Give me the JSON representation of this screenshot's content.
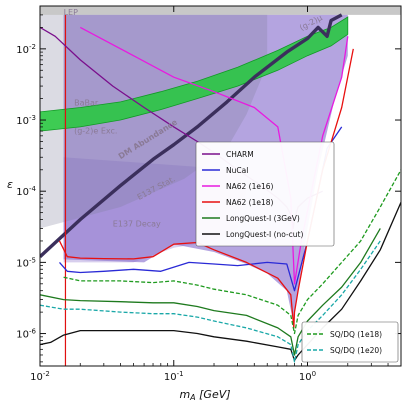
{
  "chart_data": {
    "type": "line",
    "xlabel": "m_A [GeV]",
    "ylabel": "ε",
    "x_scale": "log",
    "y_scale": "log",
    "xlim": [
      0.01,
      5
    ],
    "ylim": [
      3.5e-07,
      0.04
    ],
    "x_ticks": [
      {
        "value": 0.01,
        "label": "10^-2"
      },
      {
        "value": 0.1,
        "label": "10^-1"
      },
      {
        "value": 1,
        "label": "10^0"
      }
    ],
    "y_ticks": [
      {
        "value": 1e-06,
        "label": "10^-6"
      },
      {
        "value": 1e-05,
        "label": "10^-5"
      },
      {
        "value": 0.0001,
        "label": "10^-4"
      },
      {
        "value": 0.001,
        "label": "10^-3"
      },
      {
        "value": 0.01,
        "label": "10^-2"
      }
    ],
    "regions": [
      {
        "label": "LEP",
        "color": "#c8c8c8"
      },
      {
        "label": "BaBar",
        "color": "#a79bc0"
      },
      {
        "label": "(g-2)e Exc.",
        "color": "#9a8fb3"
      },
      {
        "label": "E137 Stat.",
        "color": "#9a8fb3"
      },
      {
        "label": "E137 Decay",
        "color": "#9a8fb3"
      },
      {
        "label": "(g-2)μ",
        "color": "#22c93a"
      },
      {
        "label": "DM Abundance",
        "color": "#3b2f5c"
      }
    ],
    "legend_main": [
      {
        "name": "CHARM",
        "color": "#7a0f8c",
        "style": "solid"
      },
      {
        "name": "NuCal",
        "color": "#2a2ad6",
        "style": "solid"
      },
      {
        "name": "NA62 (1e16)",
        "color": "#e81ae0",
        "style": "solid"
      },
      {
        "name": "NA62 (1e18)",
        "color": "#e81010",
        "style": "solid"
      },
      {
        "name": "LongQuest-I (3GeV)",
        "color": "#1e7a1e",
        "style": "solid"
      },
      {
        "name": "LongQuest-I (no-cut)",
        "color": "#111111",
        "style": "solid"
      }
    ],
    "legend_secondary": [
      {
        "name": "SQ/DQ (1e18)",
        "color": "#1e9a1e",
        "style": "dashed"
      },
      {
        "name": "SQ/DQ (1e20)",
        "color": "#1aa8a8",
        "style": "dashed"
      }
    ],
    "series": [
      {
        "name": "CHARM",
        "x": [
          0.01,
          0.013,
          0.02,
          0.035,
          0.06,
          0.1,
          0.15,
          0.2,
          0.3,
          0.45,
          0.6,
          0.7,
          0.76,
          0.78,
          0.8,
          0.85,
          1.0,
          1.3
        ],
        "y": [
          0.02,
          0.015,
          0.007,
          0.003,
          0.0015,
          0.0008,
          0.0005,
          0.00035,
          0.0002,
          0.00012,
          8e-05,
          6e-05,
          4.5e-05,
          3e-05,
          4e-05,
          6e-05,
          8e-05,
          0.0001
        ]
      },
      {
        "name": "NuCal",
        "x": [
          0.014,
          0.016,
          0.02,
          0.03,
          0.05,
          0.08,
          0.13,
          0.2,
          0.3,
          0.5,
          0.7,
          0.8,
          1.0,
          1.4,
          1.8
        ],
        "y": [
          1e-05,
          7.5e-06,
          7.2e-06,
          7.5e-06,
          8e-06,
          7.5e-06,
          1e-05,
          9.5e-06,
          9e-06,
          1e-05,
          9.5e-06,
          4e-06,
          2e-05,
          0.0004,
          0.0008
        ]
      },
      {
        "name": "NA62 (1e16)",
        "x": [
          0.02,
          0.05,
          0.1,
          0.2,
          0.4,
          0.6,
          0.75,
          0.8,
          0.9,
          1.3,
          1.8,
          2.0
        ],
        "y": [
          0.02,
          0.008,
          0.004,
          0.0025,
          0.0015,
          0.0008,
          8e-05,
          5e-06,
          2e-05,
          0.0006,
          0.004,
          0.015
        ]
      },
      {
        "name": "NA62 (1e18)",
        "x": [
          0.014,
          0.016,
          0.02,
          0.03,
          0.05,
          0.07,
          0.1,
          0.15,
          0.2,
          0.35,
          0.6,
          0.75,
          0.79,
          0.8,
          0.85,
          1.0,
          1.3,
          1.8,
          2.2
        ],
        "y": [
          2e-05,
          1.2e-05,
          1.15e-05,
          1.13e-05,
          1.12e-05,
          1.2e-05,
          1.8e-05,
          1.9e-05,
          1.5e-05,
          1e-05,
          6e-06,
          3.5e-06,
          1.2e-06,
          2e-06,
          4e-06,
          2e-05,
          0.0002,
          0.0015,
          0.01
        ]
      },
      {
        "name": "LongQuest-I (3GeV)",
        "x": [
          0.01,
          0.015,
          0.02,
          0.04,
          0.07,
          0.1,
          0.15,
          0.2,
          0.35,
          0.6,
          0.75,
          0.8,
          0.85,
          1.0,
          1.3,
          1.8,
          2.5,
          3.5
        ],
        "y": [
          3.5e-06,
          3e-06,
          2.9e-06,
          2.8e-06,
          2.7e-06,
          2.7e-06,
          2.4e-06,
          2.1e-06,
          1.8e-06,
          1.2e-06,
          9e-07,
          5e-07,
          9e-07,
          1.5e-06,
          2.5e-06,
          4.5e-06,
          1e-05,
          3e-05
        ]
      },
      {
        "name": "LongQuest-I (no-cut)",
        "x": [
          0.01,
          0.012,
          0.015,
          0.02,
          0.04,
          0.07,
          0.1,
          0.15,
          0.2,
          0.35,
          0.6,
          0.75,
          0.8,
          0.85,
          1.0,
          1.3,
          1.8,
          2.5,
          3.5,
          5
        ],
        "y": [
          7e-07,
          7.5e-07,
          9.5e-07,
          1.1e-06,
          1.1e-06,
          1.1e-06,
          1.1e-06,
          1e-06,
          9e-07,
          7.8e-07,
          6.5e-07,
          6e-07,
          4.2e-07,
          5e-07,
          7e-07,
          1.2e-06,
          2.2e-06,
          5.5e-06,
          1.5e-05,
          7e-05
        ]
      },
      {
        "name": "SQ/DQ (1e18)",
        "x": [
          0.015,
          0.02,
          0.04,
          0.07,
          0.1,
          0.15,
          0.2,
          0.35,
          0.6,
          0.75,
          0.8,
          0.85,
          1.0,
          1.3,
          1.8,
          2.5,
          3.5,
          5
        ],
        "y": [
          6.2e-06,
          5.5e-06,
          5.5e-06,
          5.2e-06,
          5.5e-06,
          4.8e-06,
          4.2e-06,
          3.5e-06,
          2.5e-06,
          1.8e-06,
          1e-06,
          1.8e-06,
          3e-06,
          5e-06,
          1e-05,
          2e-05,
          6e-05,
          0.0002
        ]
      },
      {
        "name": "SQ/DQ (1e20)",
        "x": [
          0.01,
          0.015,
          0.02,
          0.04,
          0.07,
          0.1,
          0.15,
          0.2,
          0.35,
          0.6,
          0.75,
          0.8,
          0.85,
          1.0,
          1.3,
          1.8,
          2.5,
          3.5
        ],
        "y": [
          2.5e-06,
          2.2e-06,
          2.2e-06,
          2e-06,
          1.9e-06,
          1.9e-06,
          1.7e-06,
          1.5e-06,
          1.2e-06,
          9e-07,
          7e-07,
          4e-07,
          7e-07,
          1.1e-06,
          1.8e-06,
          3.5e-06,
          8e-06,
          2e-05
        ]
      }
    ]
  }
}
